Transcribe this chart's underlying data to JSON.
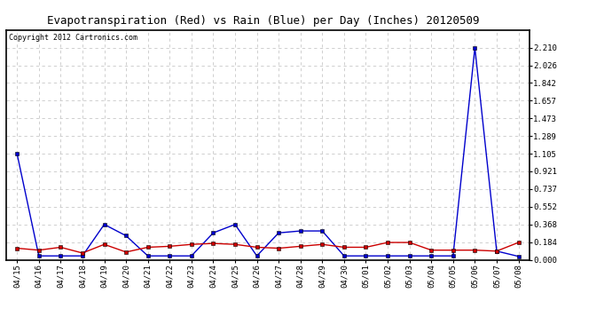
{
  "title": "Evapotranspiration (Red) vs Rain (Blue) per Day (Inches) 20120509",
  "copyright": "Copyright 2012 Cartronics.com",
  "labels": [
    "04/15",
    "04/16",
    "04/17",
    "04/18",
    "04/19",
    "04/20",
    "04/21",
    "04/22",
    "04/23",
    "04/24",
    "04/25",
    "04/26",
    "04/27",
    "04/28",
    "04/29",
    "04/30",
    "05/01",
    "05/02",
    "05/03",
    "05/04",
    "05/05",
    "05/06",
    "05/07",
    "05/08"
  ],
  "rain": [
    1.105,
    0.04,
    0.04,
    0.04,
    0.368,
    0.25,
    0.04,
    0.04,
    0.04,
    0.28,
    0.368,
    0.04,
    0.28,
    0.3,
    0.3,
    0.04,
    0.04,
    0.04,
    0.04,
    0.04,
    0.04,
    2.21,
    0.09,
    0.035
  ],
  "evap": [
    0.12,
    0.1,
    0.13,
    0.07,
    0.16,
    0.08,
    0.13,
    0.14,
    0.16,
    0.17,
    0.16,
    0.13,
    0.12,
    0.14,
    0.16,
    0.13,
    0.13,
    0.18,
    0.18,
    0.1,
    0.1,
    0.1,
    0.09,
    0.18
  ],
  "ylim": [
    0,
    2.394
  ],
  "yticks": [
    0.0,
    0.184,
    0.368,
    0.552,
    0.737,
    0.921,
    1.105,
    1.289,
    1.473,
    1.657,
    1.842,
    2.026,
    2.21
  ],
  "rain_color": "#0000cc",
  "evap_color": "#cc0000",
  "bg_color": "#ffffff",
  "grid_color": "#c8c8c8",
  "title_fontsize": 9,
  "copyright_fontsize": 6,
  "tick_fontsize": 6.5
}
